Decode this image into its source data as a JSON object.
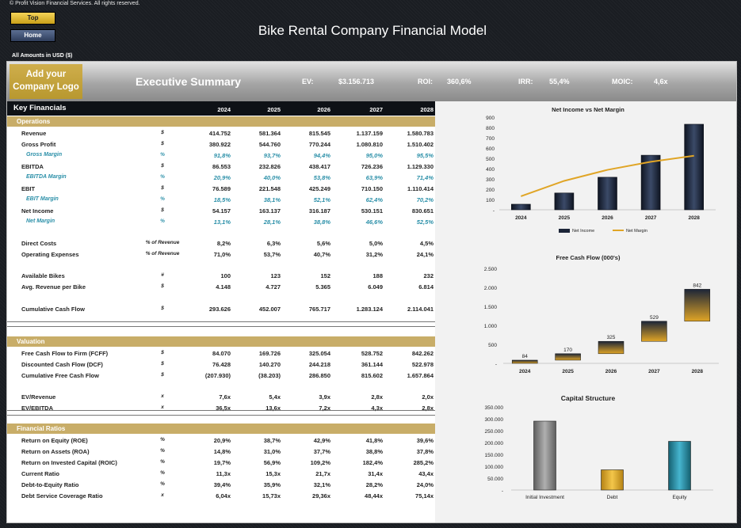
{
  "header": {
    "copyright": "© Profit Vision Financial Services. All rights reserved.",
    "top_button": "Top",
    "home_button": "Home",
    "title": "Bike Rental Company Financial Model",
    "amounts": "All Amounts in  USD ($)"
  },
  "summary": {
    "logo": "Add your Company Logo",
    "title": "Executive Summary",
    "ev_label": "EV:",
    "ev_value": "$3.156.713",
    "roi_label": "ROI:",
    "roi_value": "360,6%",
    "irr_label": "IRR:",
    "irr_value": "55,4%",
    "moic_label": "MOIC:",
    "moic_value": "4,6x"
  },
  "key_financials": {
    "title": "Key Financials",
    "years": [
      "2024",
      "2025",
      "2026",
      "2027",
      "2028"
    ],
    "operations_label": "Operations",
    "operations": [
      {
        "label": "Revenue",
        "unit": "$",
        "values": [
          "414.752",
          "581.364",
          "815.545",
          "1.137.159",
          "1.580.783"
        ],
        "margin": false
      },
      {
        "label": "Gross Profit",
        "unit": "$",
        "values": [
          "380.922",
          "544.760",
          "770.244",
          "1.080.810",
          "1.510.402"
        ],
        "margin": false
      },
      {
        "label": "Gross Margin",
        "unit": "%",
        "values": [
          "91,8%",
          "93,7%",
          "94,4%",
          "95,0%",
          "95,5%"
        ],
        "margin": true
      },
      {
        "label": "EBITDA",
        "unit": "$",
        "values": [
          "86.553",
          "232.826",
          "438.417",
          "726.236",
          "1.129.330"
        ],
        "margin": false
      },
      {
        "label": "EBITDA Margin",
        "unit": "%",
        "values": [
          "20,9%",
          "40,0%",
          "53,8%",
          "63,9%",
          "71,4%"
        ],
        "margin": true
      },
      {
        "label": "EBIT",
        "unit": "$",
        "values": [
          "76.589",
          "221.548",
          "425.249",
          "710.150",
          "1.110.414"
        ],
        "margin": false
      },
      {
        "label": "EBIT Margin",
        "unit": "%",
        "values": [
          "18,5%",
          "38,1%",
          "52,1%",
          "62,4%",
          "70,2%"
        ],
        "margin": true
      },
      {
        "label": "Net Income",
        "unit": "$",
        "values": [
          "54.157",
          "163.137",
          "316.187",
          "530.151",
          "830.651"
        ],
        "margin": false
      },
      {
        "label": "Net Margin",
        "unit": "%",
        "values": [
          "13,1%",
          "28,1%",
          "38,8%",
          "46,6%",
          "52,5%"
        ],
        "margin": true
      }
    ],
    "costs": [
      {
        "label": "Direct Costs",
        "unit": "% of Revenue",
        "values": [
          "8,2%",
          "6,3%",
          "5,6%",
          "5,0%",
          "4,5%"
        ]
      },
      {
        "label": "Operating Expenses",
        "unit": "% of Revenue",
        "values": [
          "71,0%",
          "53,7%",
          "40,7%",
          "31,2%",
          "24,1%"
        ]
      }
    ],
    "fleet": [
      {
        "label": "Available Bikes",
        "unit": "#",
        "values": [
          "100",
          "123",
          "152",
          "188",
          "232"
        ]
      },
      {
        "label": "Avg. Revenue per Bike",
        "unit": "$",
        "values": [
          "4.148",
          "4.727",
          "5.365",
          "6.049",
          "6.814"
        ]
      }
    ],
    "cash": [
      {
        "label": "Cumulative Cash Flow",
        "unit": "$",
        "values": [
          "293.626",
          "452.007",
          "765.717",
          "1.283.124",
          "2.114.041"
        ]
      }
    ]
  },
  "valuation": {
    "label": "Valuation",
    "rows": [
      {
        "label": "Free Cash Flow to Firm (FCFF)",
        "unit": "$",
        "values": [
          "84.070",
          "169.726",
          "325.054",
          "528.752",
          "842.262"
        ]
      },
      {
        "label": "Discounted Cash Flow (DCF)",
        "unit": "$",
        "values": [
          "76.428",
          "140.270",
          "244.218",
          "361.144",
          "522.978"
        ]
      },
      {
        "label": "Cumulative Free Cash Flow",
        "unit": "$",
        "values": [
          "(207.930)",
          "(38.203)",
          "286.850",
          "815.602",
          "1.657.864"
        ]
      }
    ],
    "multiples": [
      {
        "label": "EV/Revenue",
        "unit": "x",
        "values": [
          "7,6x",
          "5,4x",
          "3,9x",
          "2,8x",
          "2,0x"
        ]
      },
      {
        "label": "EV/EBITDA",
        "unit": "x",
        "values": [
          "36,5x",
          "13,6x",
          "7,2x",
          "4,3x",
          "2,8x"
        ]
      }
    ]
  },
  "ratios": {
    "label": "Financial Ratios",
    "rows": [
      {
        "label": "Return on Equity (ROE)",
        "unit": "%",
        "values": [
          "20,9%",
          "38,7%",
          "42,9%",
          "41,8%",
          "39,6%"
        ]
      },
      {
        "label": "Return on Assets (ROA)",
        "unit": "%",
        "values": [
          "14,8%",
          "31,0%",
          "37,7%",
          "38,8%",
          "37,8%"
        ]
      },
      {
        "label": "Return on Invested Capital (ROIC)",
        "unit": "%",
        "values": [
          "19,7%",
          "56,9%",
          "109,2%",
          "182,4%",
          "285,2%"
        ]
      },
      {
        "label": "Current Ratio",
        "unit": "%",
        "values": [
          "11,3x",
          "15,3x",
          "21,7x",
          "31,4x",
          "43,4x"
        ]
      },
      {
        "label": "Debt-to-Equity Ratio",
        "unit": "%",
        "values": [
          "39,4%",
          "35,9%",
          "32,1%",
          "28,2%",
          "24,0%"
        ]
      },
      {
        "label": "Debt Service Coverage Ratio",
        "unit": "x",
        "values": [
          "6,04x",
          "15,73x",
          "29,36x",
          "48,44x",
          "75,14x"
        ]
      }
    ]
  },
  "chart_data": [
    {
      "type": "bar",
      "title": "Net Income vs Net Margin",
      "categories": [
        "2024",
        "2025",
        "2026",
        "2027",
        "2028"
      ],
      "series": [
        {
          "name": "Net Income",
          "type": "bar",
          "values": [
            54,
            163,
            316,
            530,
            831
          ]
        },
        {
          "name": "Net Margin",
          "type": "line",
          "values": [
            13.1,
            28.1,
            38.8,
            46.6,
            52.5
          ]
        }
      ],
      "yticks": [
        "-",
        "100",
        "200",
        "300",
        "400",
        "500",
        "600",
        "700",
        "800",
        "900"
      ],
      "ylim": [
        0,
        900
      ],
      "legend": "bottom",
      "colors": {
        "bar": "#1c2538",
        "line": "#e0a526"
      }
    },
    {
      "type": "bar",
      "title": "Free Cash Flow (000's)",
      "categories": [
        "2024",
        "2025",
        "2026",
        "2027",
        "2028"
      ],
      "values": [
        84,
        170,
        325,
        529,
        842
      ],
      "data_labels": [
        "84",
        "170",
        "325",
        "529",
        "842"
      ],
      "yticks": [
        "-",
        "500",
        "1.000",
        "1.500",
        "2.000",
        "2.500"
      ],
      "ylim": [
        0,
        2500
      ],
      "colors": {
        "top": "#1c2538",
        "bottom": "#e0a526"
      }
    },
    {
      "type": "bar",
      "title": "Capital Structure",
      "categories": [
        "Initial Investment",
        "Debt",
        "Equity"
      ],
      "values": [
        290000,
        85000,
        205000
      ],
      "yticks": [
        "-",
        "50.000",
        "100.000",
        "150.000",
        "200.000",
        "250.000",
        "300.000",
        "350.000"
      ],
      "ylim": [
        0,
        350000
      ],
      "colors": [
        "#8c8c8c",
        "#e0a526",
        "#2a8fa8"
      ]
    }
  ]
}
